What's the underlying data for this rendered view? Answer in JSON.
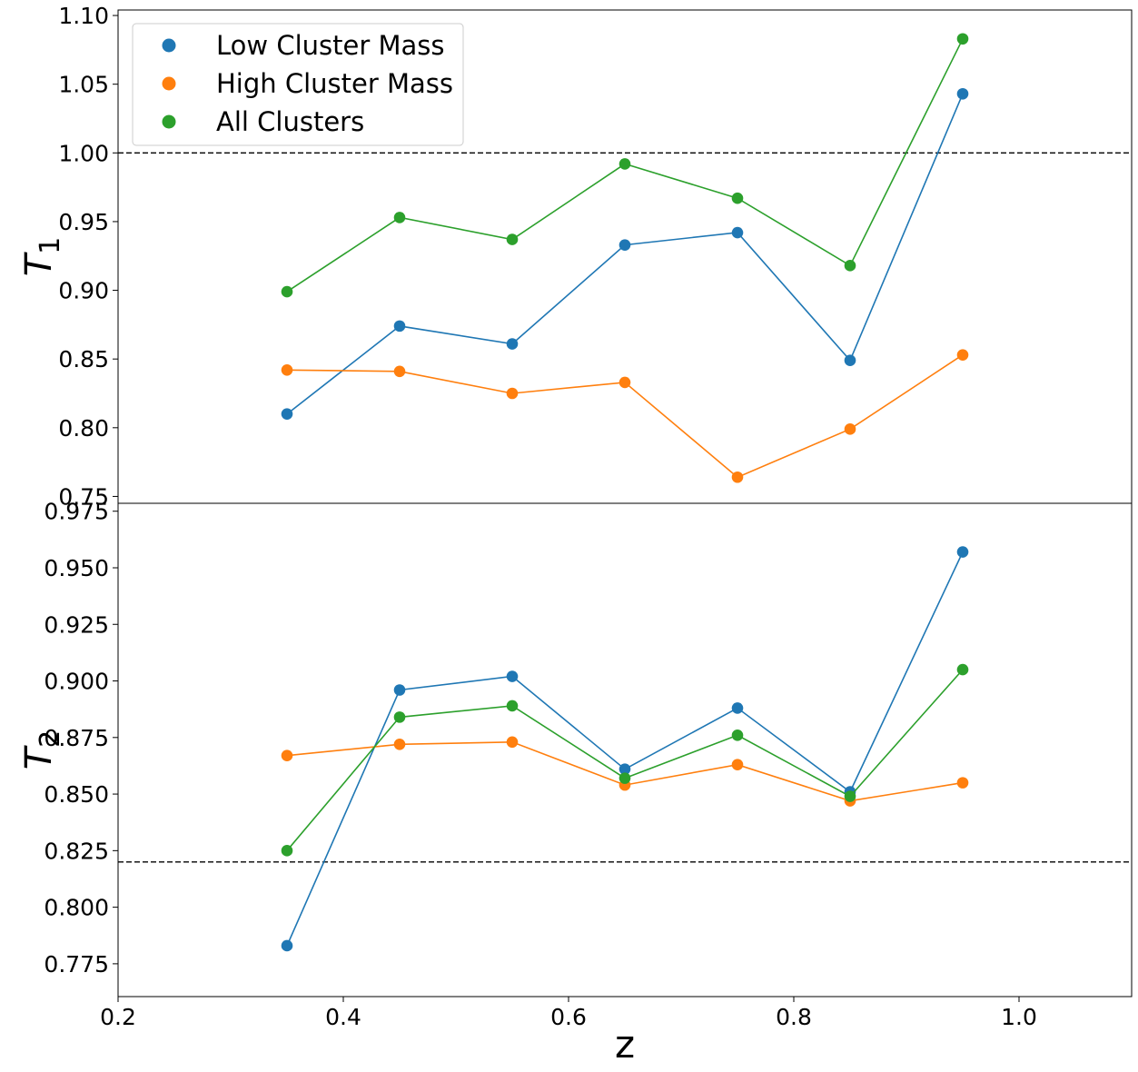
{
  "chart_data": [
    {
      "type": "line",
      "panel": "top",
      "ylabel": "T_1",
      "ylabel_main": "T",
      "ylabel_sub": "1",
      "xlabel": "",
      "xlim": [
        0.2,
        1.1
      ],
      "ylim": [
        0.745,
        1.104
      ],
      "yticks": [
        0.75,
        0.8,
        0.85,
        0.9,
        0.95,
        1.0,
        1.05,
        1.1
      ],
      "ytick_labels": [
        "0.75",
        "0.80",
        "0.85",
        "0.90",
        "0.95",
        "1.00",
        "1.05",
        "1.10"
      ],
      "reference_line": 1.0,
      "x": [
        0.35,
        0.45,
        0.55,
        0.65,
        0.75,
        0.85,
        0.95
      ],
      "series": [
        {
          "name": "Low Cluster Mass",
          "color": "#1f77b4",
          "values": [
            0.81,
            0.874,
            0.861,
            0.933,
            0.942,
            0.849,
            1.043
          ]
        },
        {
          "name": "High Cluster Mass",
          "color": "#ff7f0e",
          "values": [
            0.842,
            0.841,
            0.825,
            0.833,
            0.764,
            0.799,
            0.853
          ]
        },
        {
          "name": "All Clusters",
          "color": "#2ca02c",
          "values": [
            0.899,
            0.953,
            0.937,
            0.992,
            0.967,
            0.918,
            1.083
          ]
        }
      ],
      "legend": {
        "position": "upper-left",
        "entries": [
          "Low Cluster Mass",
          "High Cluster Mass",
          "All Clusters"
        ]
      },
      "grid": false
    },
    {
      "type": "line",
      "panel": "bottom",
      "ylabel": "T_2",
      "ylabel_main": "T",
      "ylabel_sub": "2",
      "xlabel": "z",
      "xlim": [
        0.2,
        1.1
      ],
      "ylim": [
        0.7605,
        0.9785
      ],
      "yticks": [
        0.775,
        0.8,
        0.825,
        0.85,
        0.875,
        0.9,
        0.925,
        0.95,
        0.975
      ],
      "ytick_labels": [
        "0.775",
        "0.800",
        "0.825",
        "0.850",
        "0.875",
        "0.900",
        "0.925",
        "0.950",
        "0.975"
      ],
      "xticks": [
        0.2,
        0.4,
        0.6,
        0.8,
        1.0
      ],
      "xtick_labels": [
        "0.2",
        "0.4",
        "0.6",
        "0.8",
        "1.0"
      ],
      "reference_line": 0.82,
      "x": [
        0.35,
        0.45,
        0.55,
        0.65,
        0.75,
        0.85,
        0.95
      ],
      "series": [
        {
          "name": "Low Cluster Mass",
          "color": "#1f77b4",
          "values": [
            0.783,
            0.896,
            0.902,
            0.861,
            0.888,
            0.851,
            0.957
          ]
        },
        {
          "name": "High Cluster Mass",
          "color": "#ff7f0e",
          "values": [
            0.867,
            0.872,
            0.873,
            0.854,
            0.863,
            0.847,
            0.855
          ]
        },
        {
          "name": "All Clusters",
          "color": "#2ca02c",
          "values": [
            0.825,
            0.884,
            0.889,
            0.857,
            0.876,
            0.849,
            0.905
          ]
        }
      ],
      "grid": false
    }
  ]
}
